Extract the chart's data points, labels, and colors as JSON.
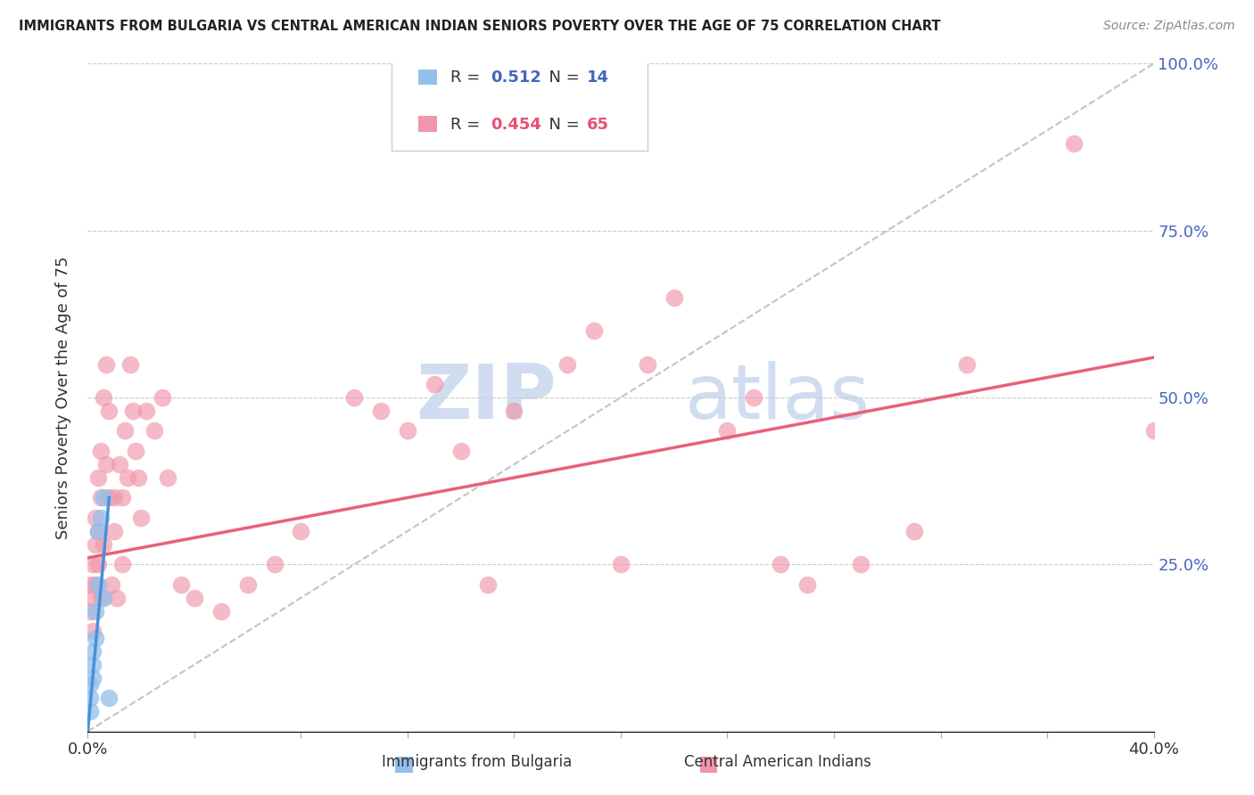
{
  "title": "IMMIGRANTS FROM BULGARIA VS CENTRAL AMERICAN INDIAN SENIORS POVERTY OVER THE AGE OF 75 CORRELATION CHART",
  "source": "Source: ZipAtlas.com",
  "ylabel": "Seniors Poverty Over the Age of 75",
  "xlim": [
    0.0,
    0.4
  ],
  "ylim": [
    0.0,
    1.0
  ],
  "legend_r_bulgaria": "0.512",
  "legend_n_bulgaria": "14",
  "legend_r_central": "0.454",
  "legend_n_central": "65",
  "blue_color": "#92C0EA",
  "pink_color": "#F096AA",
  "blue_line_color": "#4A90D9",
  "pink_line_color": "#E8607A",
  "label_blue": "Immigrants from Bulgaria",
  "label_pink": "Central American Indians",
  "watermark_zip": "ZIP",
  "watermark_atlas": "atlas",
  "bulgaria_x": [
    0.001,
    0.001,
    0.001,
    0.002,
    0.002,
    0.002,
    0.003,
    0.003,
    0.004,
    0.004,
    0.005,
    0.006,
    0.006,
    0.008
  ],
  "bulgaria_y": [
    0.03,
    0.05,
    0.07,
    0.1,
    0.08,
    0.12,
    0.14,
    0.18,
    0.22,
    0.3,
    0.32,
    0.35,
    0.2,
    0.05
  ],
  "central_x": [
    0.001,
    0.001,
    0.002,
    0.002,
    0.002,
    0.003,
    0.003,
    0.003,
    0.004,
    0.004,
    0.004,
    0.005,
    0.005,
    0.005,
    0.006,
    0.006,
    0.007,
    0.007,
    0.008,
    0.008,
    0.009,
    0.01,
    0.01,
    0.011,
    0.012,
    0.013,
    0.013,
    0.014,
    0.015,
    0.016,
    0.017,
    0.018,
    0.019,
    0.02,
    0.022,
    0.025,
    0.028,
    0.03,
    0.035,
    0.04,
    0.05,
    0.06,
    0.07,
    0.08,
    0.1,
    0.11,
    0.12,
    0.13,
    0.14,
    0.15,
    0.16,
    0.18,
    0.19,
    0.2,
    0.21,
    0.22,
    0.24,
    0.25,
    0.26,
    0.27,
    0.29,
    0.31,
    0.33,
    0.37,
    0.4
  ],
  "central_y": [
    0.18,
    0.22,
    0.2,
    0.25,
    0.15,
    0.28,
    0.22,
    0.32,
    0.3,
    0.25,
    0.38,
    0.35,
    0.42,
    0.2,
    0.5,
    0.28,
    0.55,
    0.4,
    0.48,
    0.35,
    0.22,
    0.35,
    0.3,
    0.2,
    0.4,
    0.35,
    0.25,
    0.45,
    0.38,
    0.55,
    0.48,
    0.42,
    0.38,
    0.32,
    0.48,
    0.45,
    0.5,
    0.38,
    0.22,
    0.2,
    0.18,
    0.22,
    0.25,
    0.3,
    0.5,
    0.48,
    0.45,
    0.52,
    0.42,
    0.22,
    0.48,
    0.55,
    0.6,
    0.25,
    0.55,
    0.65,
    0.45,
    0.5,
    0.25,
    0.22,
    0.25,
    0.3,
    0.55,
    0.88,
    0.45
  ],
  "bulgaria_line_x": [
    0.0,
    0.008
  ],
  "bulgaria_line_y": [
    0.0,
    0.35
  ],
  "central_line_x": [
    0.0,
    0.4
  ],
  "central_line_y": [
    0.26,
    0.56
  ],
  "diag_line_x": [
    0.0,
    0.4
  ],
  "diag_line_y": [
    0.0,
    1.0
  ]
}
